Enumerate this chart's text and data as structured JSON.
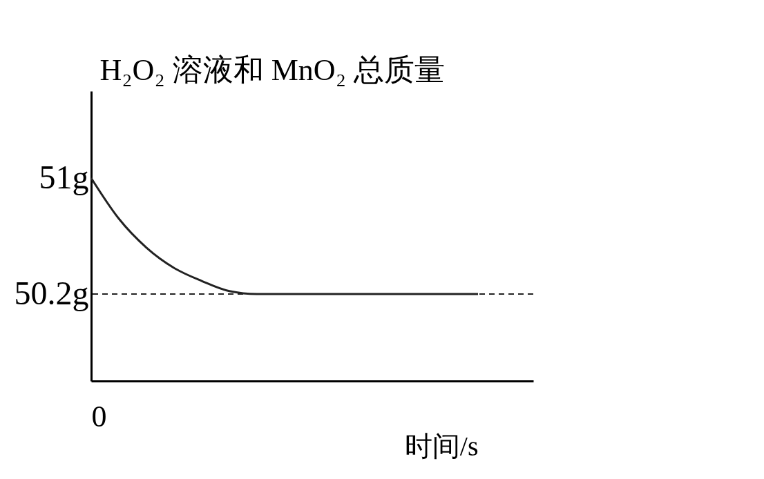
{
  "chart_data": {
    "type": "line",
    "xlabel": "时间/s",
    "ylabel": "H₂O₂ 溶液和 MnO₂ 总质量",
    "categories": [
      "0",
      null,
      null,
      null,
      null,
      null,
      null,
      null,
      null,
      null,
      null,
      null,
      null,
      null,
      null
    ],
    "series": [
      {
        "color": "#222222",
        "values": [
          51,
          50.72,
          50.52,
          50.38,
          50.29,
          50.22,
          50.2,
          50.2,
          50.2,
          50.2,
          50.2,
          50.2,
          50.2,
          50.2,
          50.2
        ]
      }
    ],
    "ylim": [
      49.6,
      51.6
    ],
    "yticks": [
      {
        "value": 50.2,
        "label": "50.2g"
      },
      {
        "value": 51,
        "label": "51g"
      }
    ],
    "ref_lines": [
      {
        "axis": "y",
        "value": 50.2,
        "line_style": "dashed",
        "color": "#222222"
      }
    ],
    "marker": "none",
    "line_style": "solid"
  }
}
